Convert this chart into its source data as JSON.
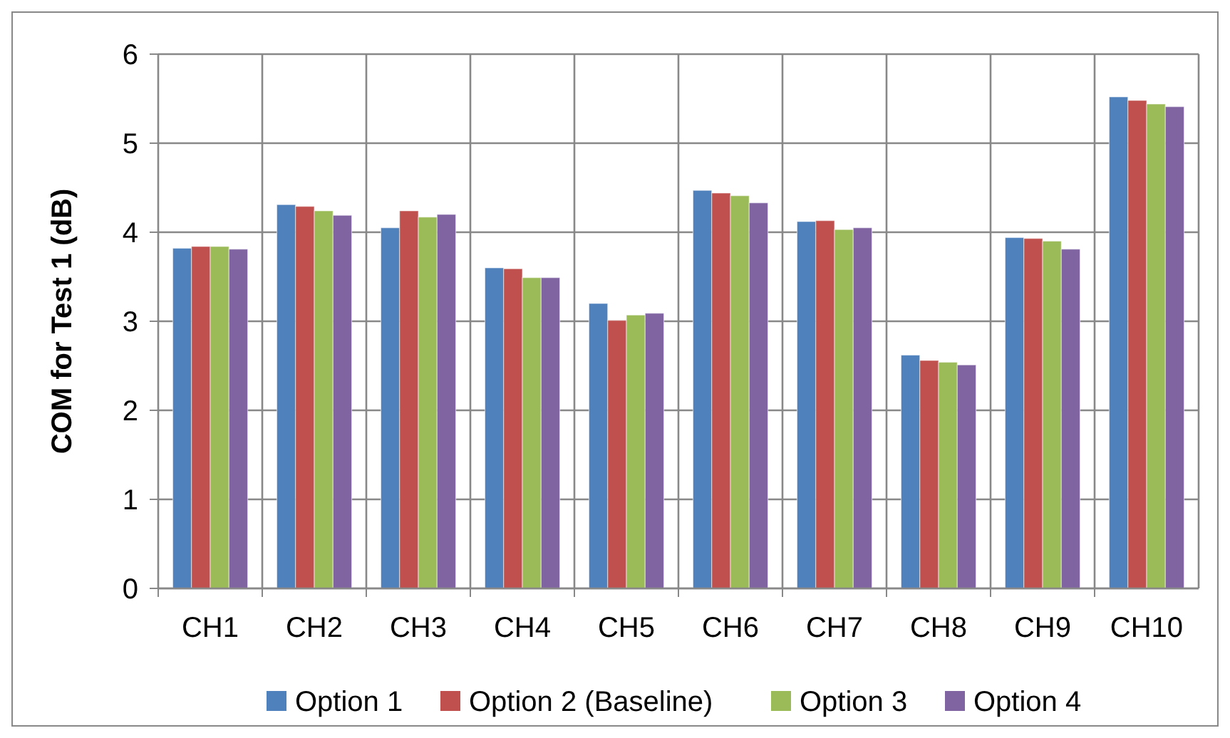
{
  "chart_data": {
    "type": "bar",
    "ylabel": "COM for Test 1 (dB)",
    "categories": [
      "CH1",
      "CH2",
      "CH3",
      "CH4",
      "CH5",
      "CH6",
      "CH7",
      "CH8",
      "CH9",
      "CH10"
    ],
    "series": [
      {
        "name": "Option 1",
        "color": "#4f81bd",
        "values": [
          3.82,
          4.31,
          4.05,
          3.6,
          3.2,
          4.47,
          4.12,
          2.62,
          3.94,
          5.52
        ]
      },
      {
        "name": "Option 2 (Baseline)",
        "color": "#c0504d",
        "values": [
          3.84,
          4.29,
          4.24,
          3.59,
          3.01,
          4.44,
          4.13,
          2.56,
          3.93,
          5.48
        ]
      },
      {
        "name": "Option 3",
        "color": "#9bbb59",
        "values": [
          3.84,
          4.24,
          4.17,
          3.49,
          3.07,
          4.41,
          4.03,
          2.54,
          3.9,
          5.44
        ]
      },
      {
        "name": "Option 4",
        "color": "#8064a2",
        "values": [
          3.81,
          4.19,
          4.2,
          3.49,
          3.09,
          4.33,
          4.05,
          2.51,
          3.81,
          5.41
        ]
      }
    ],
    "ylim": [
      0,
      6
    ],
    "yticks": [
      0,
      1,
      2,
      3,
      4,
      5,
      6
    ],
    "grid": true,
    "legend": "bottom"
  }
}
